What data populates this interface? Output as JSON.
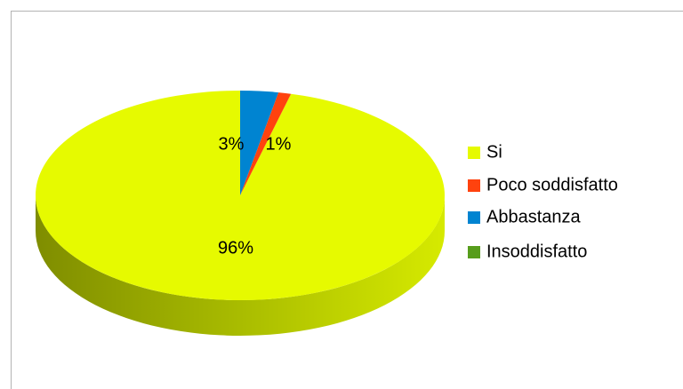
{
  "chart_data": {
    "type": "pie",
    "categories": [
      "Si",
      "Poco soddisfatto",
      "Abbastanza",
      "Insoddisfatto"
    ],
    "values": [
      96,
      1,
      3,
      0
    ],
    "value_labels": [
      "96%",
      "1%",
      "3%",
      null
    ],
    "colors": [
      "#e6fa00",
      "#ff420e",
      "#0084d1",
      "#579d1c"
    ],
    "legend": "right"
  }
}
